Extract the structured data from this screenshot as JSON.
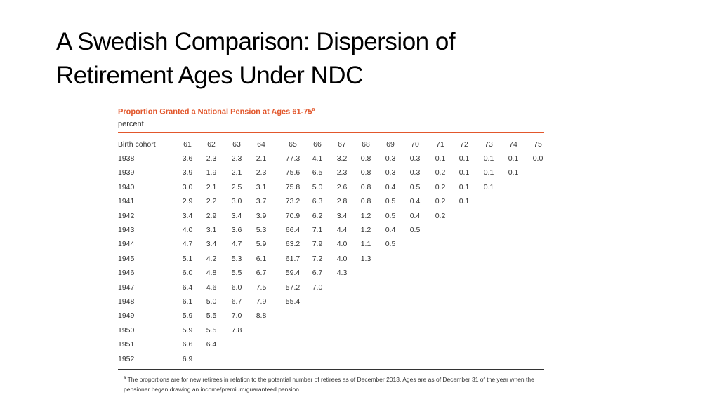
{
  "slide": {
    "title": "A Swedish Comparison: Dispersion of Retirement Ages Under NDC"
  },
  "table": {
    "title": "Proportion Granted a National Pension at Ages 61-75",
    "title_note": "a",
    "unit": "percent",
    "header": [
      "Birth cohort",
      "61",
      "62",
      "63",
      "64",
      "65",
      "66",
      "67",
      "68",
      "69",
      "70",
      "71",
      "72",
      "73",
      "74",
      "75"
    ],
    "rows": [
      [
        "1938",
        "3.6",
        "2.3",
        "2.3",
        "2.1",
        "77.3",
        "4.1",
        "3.2",
        "0.8",
        "0.3",
        "0.3",
        "0.1",
        "0.1",
        "0.1",
        "0.1",
        "0.0"
      ],
      [
        "1939",
        "3.9",
        "1.9",
        "2.1",
        "2.3",
        "75.6",
        "6.5",
        "2.3",
        "0.8",
        "0.3",
        "0.3",
        "0.2",
        "0.1",
        "0.1",
        "0.1"
      ],
      [
        "1940",
        "3.0",
        "2.1",
        "2.5",
        "3.1",
        "75.8",
        "5.0",
        "2.6",
        "0.8",
        "0.4",
        "0.5",
        "0.2",
        "0.1",
        "0.1"
      ],
      [
        "1941",
        "2.9",
        "2.2",
        "3.0",
        "3.7",
        "73.2",
        "6.3",
        "2.8",
        "0.8",
        "0.5",
        "0.4",
        "0.2",
        "0.1"
      ],
      [
        "1942",
        "3.4",
        "2.9",
        "3.4",
        "3.9",
        "70.9",
        "6.2",
        "3.4",
        "1.2",
        "0.5",
        "0.4",
        "0.2"
      ],
      [
        "1943",
        "4.0",
        "3.1",
        "3.6",
        "5.3",
        "66.4",
        "7.1",
        "4.4",
        "1.2",
        "0.4",
        "0.5"
      ],
      [
        "1944",
        "4.7",
        "3.4",
        "4.7",
        "5.9",
        "63.2",
        "7.9",
        "4.0",
        "1.1",
        "0.5"
      ],
      [
        "1945",
        "5.1",
        "4.2",
        "5.3",
        "6.1",
        "61.7",
        "7.2",
        "4.0",
        "1.3"
      ],
      [
        "1946",
        "6.0",
        "4.8",
        "5.5",
        "6.7",
        "59.4",
        "6.7",
        "4.3"
      ],
      [
        "1947",
        "6.4",
        "4.6",
        "6.0",
        "7.5",
        "57.2",
        "7.0"
      ],
      [
        "1948",
        "6.1",
        "5.0",
        "6.7",
        "7.9",
        "55.4"
      ],
      [
        "1949",
        "5.9",
        "5.5",
        "7.0",
        "8.8"
      ],
      [
        "1950",
        "5.9",
        "5.5",
        "7.8"
      ],
      [
        "1951",
        "6.6",
        "6.4"
      ],
      [
        "1952",
        "6.9"
      ]
    ],
    "footnote": {
      "marker": "a",
      "text": "The proportions are for new retirees in relation to the potential number of retirees as of December 2013. Ages are as of December 31 of the year when the pensioner began drawing an income/premium/guaranteed pension."
    }
  }
}
